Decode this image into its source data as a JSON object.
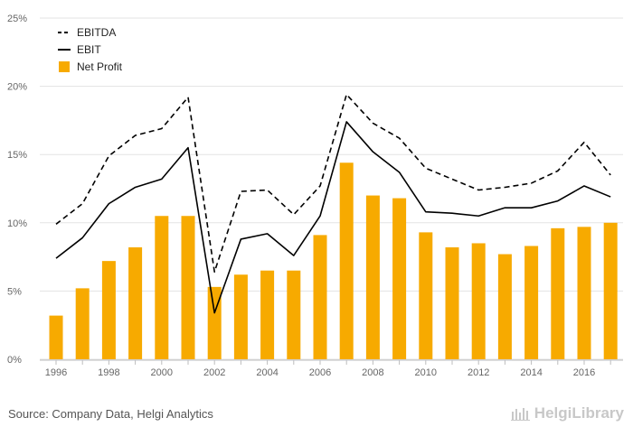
{
  "chart_data": {
    "type": "bar",
    "title": "",
    "xlabel": "",
    "ylabel": "",
    "ylim": [
      0,
      25
    ],
    "yticks": [
      "0%",
      "5%",
      "10%",
      "15%",
      "20%",
      "25%"
    ],
    "ytick_values": [
      0,
      5,
      10,
      15,
      20,
      25
    ],
    "x": [
      1996,
      1997,
      1998,
      1999,
      2000,
      2001,
      2002,
      2003,
      2004,
      2005,
      2006,
      2007,
      2008,
      2009,
      2010,
      2011,
      2012,
      2013,
      2014,
      2015,
      2016,
      2017
    ],
    "xtick_labels": [
      "1996",
      "1998",
      "2000",
      "2002",
      "2004",
      "2006",
      "2008",
      "2010",
      "2012",
      "2014",
      "2016"
    ],
    "grid": "horizontal",
    "legend_position": "top-left",
    "series": [
      {
        "name": "EBITDA",
        "type": "line",
        "style": "dashed",
        "color": "#000000",
        "values": [
          9.9,
          11.4,
          14.9,
          16.4,
          16.9,
          19.2,
          6.4,
          12.3,
          12.4,
          10.6,
          12.7,
          19.4,
          17.3,
          16.2,
          14.0,
          13.2,
          12.4,
          12.6,
          12.9,
          13.8,
          15.9,
          13.5
        ]
      },
      {
        "name": "EBIT",
        "type": "line",
        "style": "solid",
        "color": "#000000",
        "values": [
          7.4,
          8.9,
          11.4,
          12.6,
          13.2,
          15.5,
          3.4,
          8.8,
          9.2,
          7.6,
          10.5,
          17.4,
          15.2,
          13.7,
          10.8,
          10.7,
          10.5,
          11.1,
          11.1,
          11.6,
          12.7,
          11.9
        ]
      },
      {
        "name": "Net Profit",
        "type": "bar",
        "color": "#f7aa00",
        "values": [
          3.2,
          5.2,
          7.2,
          8.2,
          10.5,
          10.5,
          5.3,
          6.2,
          6.5,
          6.5,
          9.1,
          14.4,
          12.0,
          11.8,
          9.3,
          8.2,
          8.5,
          7.7,
          8.3,
          9.6,
          9.7,
          10.0
        ]
      }
    ]
  },
  "footer": {
    "source": "Source: Company Data, Helgi Analytics",
    "brand": "HelgiLibrary"
  }
}
